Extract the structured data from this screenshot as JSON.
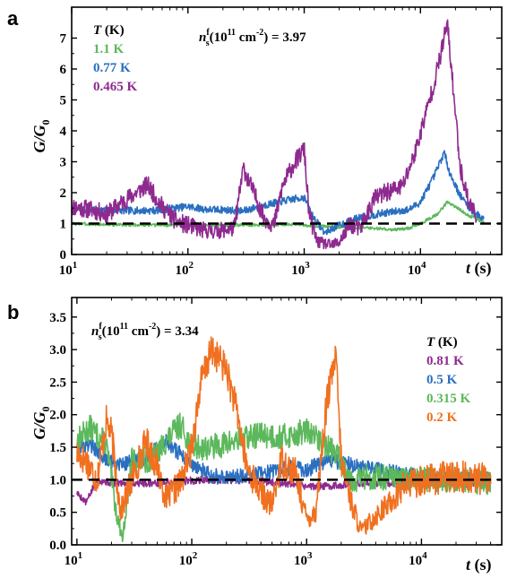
{
  "chart_data": [
    {
      "panel": "a",
      "type": "line",
      "x_scale": "log",
      "xlim": [
        10,
        50000
      ],
      "ylim": [
        0,
        8
      ],
      "y_ticks": [
        "0",
        "1",
        "2",
        "3",
        "4",
        "5",
        "6",
        "7"
      ],
      "y_tick_values": [
        0,
        1,
        2,
        3,
        4,
        5,
        6,
        7
      ],
      "x_ticks": [
        {
          "base": "10",
          "exp": "1",
          "value": 10
        },
        {
          "base": "10",
          "exp": "2",
          "value": 100
        },
        {
          "base": "10",
          "exp": "3",
          "value": 1000
        },
        {
          "base": "10",
          "exp": "4",
          "value": 10000
        }
      ],
      "xlabel": {
        "var": "t",
        "unit": " (s)"
      },
      "ylabel": {
        "main": "G/G",
        "sub": "0"
      },
      "annotation": {
        "n": "n",
        "sup": "f",
        "sub": "s",
        "rest": "(10",
        "exp": "11",
        "unit": " cm",
        "unit_exp": "-2",
        "tail": ") = 3.97"
      },
      "legend_title": {
        "var": "T",
        "unit": " (K)"
      },
      "reference_line": 1,
      "series": [
        {
          "name": "1.1 K",
          "color": "#5cb85c",
          "seed": 3,
          "amp": 0.05,
          "x": [
            10,
            20,
            50,
            100,
            200,
            400,
            700,
            1000,
            1300,
            1700,
            2500,
            4000,
            6000,
            8000,
            10000,
            14000,
            17000,
            20000,
            25000,
            30000,
            35000
          ],
          "y": [
            1.0,
            0.97,
            0.95,
            0.95,
            0.95,
            0.96,
            0.98,
            0.95,
            0.92,
            0.9,
            0.88,
            0.85,
            0.8,
            0.85,
            1.0,
            1.3,
            1.7,
            1.55,
            1.3,
            1.15,
            1.05
          ]
        },
        {
          "name": "0.77 K",
          "color": "#2a6fc0",
          "seed": 7,
          "amp": 0.12,
          "x": [
            10,
            20,
            50,
            100,
            150,
            200,
            300,
            400,
            700,
            1000,
            1200,
            1500,
            2000,
            3000,
            5000,
            8000,
            10000,
            13000,
            16000,
            18000,
            22000,
            28000,
            35000
          ],
          "y": [
            1.45,
            1.42,
            1.42,
            1.55,
            1.45,
            1.45,
            1.4,
            1.55,
            1.75,
            1.85,
            1.2,
            0.7,
            0.95,
            1.2,
            1.35,
            1.45,
            1.7,
            2.5,
            3.3,
            2.6,
            1.9,
            1.4,
            1.15
          ]
        },
        {
          "name": "0.465 K",
          "color": "#8e2a8f",
          "seed": 11,
          "amp": 0.3,
          "x": [
            10,
            15,
            20,
            30,
            45,
            60,
            80,
            100,
            130,
            170,
            250,
            300,
            350,
            450,
            550,
            650,
            800,
            1000,
            1100,
            1300,
            1500,
            1700,
            2000,
            2500,
            3000,
            4000,
            5000,
            7000,
            9000,
            11000,
            13000,
            15000,
            17000,
            19000,
            22000,
            26000,
            30000
          ],
          "y": [
            1.55,
            1.45,
            1.3,
            1.8,
            2.25,
            1.55,
            1.05,
            0.95,
            0.8,
            0.75,
            0.85,
            2.8,
            2.2,
            1.2,
            0.95,
            2.2,
            2.9,
            3.4,
            1.3,
            0.4,
            0.35,
            0.3,
            0.4,
            1.0,
            0.8,
            1.8,
            2.0,
            2.2,
            3.3,
            4.5,
            5.5,
            6.5,
            7.5,
            5.5,
            2.8,
            1.7,
            1.3
          ]
        }
      ]
    },
    {
      "panel": "b",
      "type": "line",
      "x_scale": "log",
      "xlim": [
        9,
        50000
      ],
      "ylim": [
        0,
        3.8
      ],
      "y_ticks": [
        "0.0",
        "0.5",
        "1.0",
        "1.5",
        "2.0",
        "2.5",
        "3.0",
        "3.5"
      ],
      "y_tick_values": [
        0,
        0.5,
        1.0,
        1.5,
        2.0,
        2.5,
        3.0,
        3.5
      ],
      "x_ticks": [
        {
          "base": "10",
          "exp": "1",
          "value": 10
        },
        {
          "base": "10",
          "exp": "2",
          "value": 100
        },
        {
          "base": "10",
          "exp": "3",
          "value": 1000
        },
        {
          "base": "10",
          "exp": "4",
          "value": 10000
        }
      ],
      "xlabel": {
        "var": "t",
        "unit": " (s)"
      },
      "ylabel": {
        "main": "G/G",
        "sub": "0"
      },
      "annotation": {
        "n": "n",
        "sup": "f",
        "sub": "s",
        "rest": "(10",
        "exp": "11",
        "unit": " cm",
        "unit_exp": "-2",
        "tail": ") = 3.34"
      },
      "legend_title": {
        "var": "T",
        "unit": " (K)"
      },
      "reference_line": 1,
      "series": [
        {
          "name": "0.81 K",
          "color": "#8e2a8f",
          "seed": 5,
          "amp": 0.06,
          "x": [
            10,
            12,
            15,
            20,
            30,
            50,
            80,
            150,
            300,
            600,
            1000,
            1500,
            3000,
            6000,
            10000,
            20000,
            40000
          ],
          "y": [
            0.8,
            0.65,
            1.0,
            0.95,
            0.95,
            0.95,
            0.98,
            1.0,
            1.0,
            0.95,
            0.9,
            0.9,
            0.95,
            0.95,
            0.95,
            1.0,
            1.0
          ]
        },
        {
          "name": "0.5 K",
          "color": "#2a6fc0",
          "seed": 9,
          "amp": 0.12,
          "x": [
            10,
            13,
            18,
            25,
            40,
            60,
            90,
            150,
            250,
            400,
            600,
            800,
            1000,
            1500,
            3000,
            6000,
            10000,
            20000,
            40000
          ],
          "y": [
            1.5,
            1.55,
            1.3,
            1.25,
            1.35,
            1.6,
            1.3,
            1.05,
            1.05,
            1.1,
            1.15,
            1.2,
            1.15,
            1.3,
            1.2,
            1.1,
            1.05,
            1.0,
            1.0
          ]
        },
        {
          "name": "0.315 K",
          "color": "#5cb85c",
          "seed": 13,
          "amp": 0.2,
          "x": [
            10,
            13,
            18,
            22,
            25,
            30,
            45,
            60,
            80,
            100,
            150,
            250,
            400,
            600,
            800,
            1000,
            1300,
            1800,
            2500,
            4000,
            6000,
            10000,
            20000,
            40000
          ],
          "y": [
            1.6,
            1.8,
            1.55,
            0.5,
            0.1,
            1.3,
            1.3,
            1.6,
            1.85,
            1.5,
            1.5,
            1.6,
            1.7,
            1.65,
            1.7,
            1.75,
            1.6,
            1.4,
            1.0,
            1.05,
            1.0,
            1.0,
            1.0,
            0.95
          ]
        },
        {
          "name": "0.2 K",
          "color": "#f07020",
          "seed": 17,
          "amp": 0.25,
          "x": [
            10,
            12,
            15,
            18,
            20,
            24,
            30,
            40,
            50,
            60,
            80,
            100,
            120,
            150,
            200,
            250,
            300,
            400,
            500,
            600,
            800,
            1000,
            1200,
            1500,
            1800,
            2000,
            2500,
            3000,
            4000,
            5000,
            7000,
            10000,
            20000,
            40000
          ],
          "y": [
            1.4,
            1.3,
            1.0,
            1.9,
            1.7,
            0.5,
            1.0,
            1.6,
            1.2,
            0.7,
            0.95,
            1.5,
            2.5,
            3.0,
            2.7,
            2.0,
            1.2,
            0.8,
            0.6,
            1.3,
            1.1,
            0.4,
            0.5,
            2.2,
            2.9,
            1.3,
            0.6,
            0.2,
            0.45,
            0.6,
            0.9,
            1.0,
            1.05,
            1.0
          ]
        }
      ]
    }
  ]
}
